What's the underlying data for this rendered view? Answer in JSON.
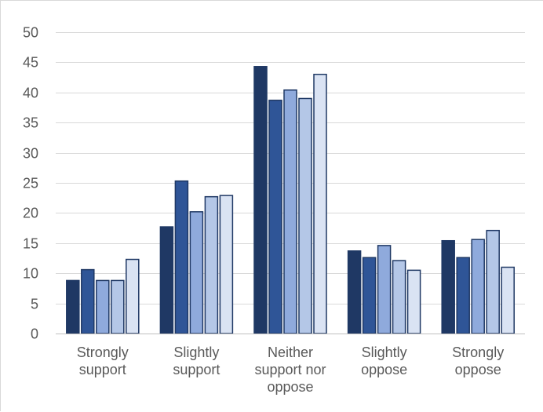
{
  "chart_data": {
    "type": "bar",
    "title": "",
    "xlabel": "",
    "ylabel": "",
    "ylim": [
      0,
      50
    ],
    "yticks": [
      0,
      5,
      10,
      15,
      20,
      25,
      30,
      35,
      40,
      45,
      50
    ],
    "grid": true,
    "legend": "none",
    "categories": [
      [
        "Strongly",
        "support"
      ],
      [
        "Slightly",
        "support"
      ],
      [
        "Neither",
        "support nor",
        "oppose"
      ],
      [
        "Slightly",
        "oppose"
      ],
      [
        "Strongly",
        "oppose"
      ]
    ],
    "series": [
      {
        "color": "#1f3864",
        "values": [
          8.8,
          17.7,
          44.3,
          13.7,
          15.4
        ]
      },
      {
        "color": "#2f5597",
        "values": [
          10.6,
          25.3,
          38.7,
          12.6,
          12.6
        ]
      },
      {
        "color": "#8faadc",
        "values": [
          8.8,
          20.2,
          40.4,
          14.6,
          15.6
        ]
      },
      {
        "color": "#b4c7e7",
        "values": [
          8.8,
          22.7,
          39.0,
          12.1,
          17.1
        ]
      },
      {
        "color": "#dae3f3",
        "values": [
          12.3,
          22.9,
          43.0,
          10.5,
          11.0
        ]
      }
    ]
  }
}
